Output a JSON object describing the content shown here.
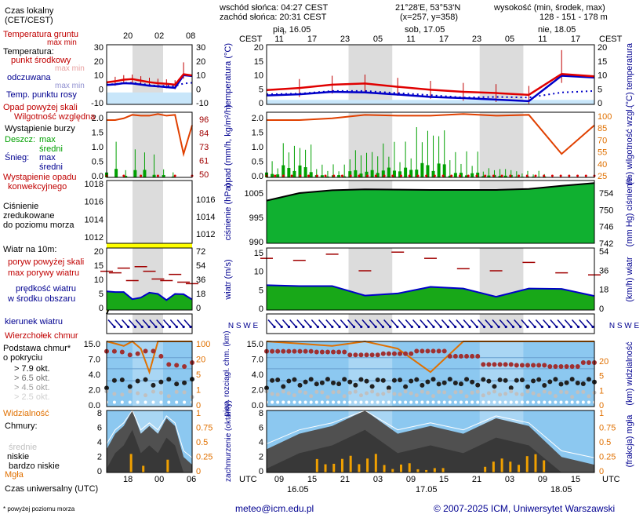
{
  "header": {
    "sunrise": "wschód słońca: 04:27 CEST",
    "sunset": "zachód słońca: 20:31 CEST",
    "coords": "21°28'E, 53°53'N",
    "grid": "(x=257, y=358)",
    "altitude_title": "wysokość (min, środek, max)",
    "altitude_values": "128 - 151 - 178 m"
  },
  "legend": {
    "local_time_1": "Czas lokalny",
    "local_time_2": "(CET/CEST)",
    "local_hours": [
      "20",
      "02",
      "08"
    ],
    "soil_temp": "Temperatura gruntu",
    "max_min_1": "max min",
    "temperature": "Temperatura:",
    "mid_point": "punkt środkowy",
    "max_min_2": "max min",
    "perceived": "odczuwana",
    "max_min_3": "max min",
    "dew_point": "Temp. punktu rosy",
    "precip_above": "Opad powyżej skali",
    "rel_humidity": "Wilgotność względna",
    "storm": "Wystąpienie burzy",
    "rain": "Deszcz:",
    "rain_max": "max",
    "rain_mean": "średni",
    "snow": "Śnieg:",
    "snow_max": "max",
    "snow_mean": "średni",
    "conv_precip_1": "Wystąpienie opadu",
    "conv_precip_2": "konwekcyjnego",
    "pressure_1": "Ciśnienie",
    "pressure_2": "zredukowane",
    "pressure_3": "do poziomu morza",
    "wind_at": "Wiatr na 10m:",
    "gust_above": "poryw powyżej skali",
    "max_gust": "max porywy wiatru",
    "wind_speed_1": "prędkość wiatru",
    "wind_speed_2": "w środku obszaru",
    "wind_dir": "kierunek wiatru",
    "cloud_top": "Wierzchołek chmur",
    "cloud_base_1": "Podstawa chmur*",
    "cloud_base_2": "o pokryciu",
    "okt": [
      "> 7.9 okt.",
      "> 6.5 okt.",
      "> 4.5 okt.",
      "> 2.5 okt.",
      "> 0.1 okt."
    ],
    "visibility": "Widzialność",
    "clouds": "Chmury:",
    "high": "wysokie",
    "middle": "średnie",
    "low": "niskie",
    "very_low": "bardzo niskie",
    "fog": "Mgła",
    "utc_label": "Czas uniwersalny (UTC)",
    "utc_hours": [
      "18",
      "00",
      "06"
    ],
    "footnote": "* powyżej poziomu morza"
  },
  "mini_axes": {
    "temp_left": [
      "30",
      "20",
      "10",
      "0",
      "-10"
    ],
    "temp_right": [
      "30",
      "20",
      "10",
      "0",
      "-10"
    ],
    "precip_left": [
      "2.0",
      "1.5",
      "1.0",
      "0.5",
      "0.0"
    ],
    "precip_right": [
      "96",
      "84",
      "73",
      "61",
      "50"
    ],
    "press_left": [
      "1018",
      "1016",
      "1014",
      "1012"
    ],
    "press_right": [
      "1016",
      "1014",
      "1012"
    ],
    "wind_left": [
      "20",
      "15",
      "10",
      "5",
      "0"
    ],
    "wind_right": [
      "72",
      "54",
      "36",
      "18",
      "0"
    ],
    "cloud_left": [
      "15.0",
      "7.0",
      "4.0",
      "2.0",
      "0.0"
    ],
    "cloud_right": [
      "100",
      "20",
      "5",
      "1",
      "0"
    ],
    "clouds_left": [
      "8",
      "6",
      "4",
      "2",
      "0"
    ],
    "clouds_right": [
      "1",
      "0.75",
      "0.5",
      "0.25",
      "0"
    ]
  },
  "main": {
    "days": [
      "pią, 16.05",
      "sob, 17.05",
      "nie, 18.05"
    ],
    "cest": "CEST",
    "cest_hours": [
      "11",
      "17",
      "23",
      "05",
      "11",
      "17",
      "23",
      "05",
      "11",
      "17"
    ],
    "utc": "UTC",
    "utc_hours": [
      "09",
      "15",
      "21",
      "03",
      "09",
      "15",
      "21",
      "03",
      "09",
      "15"
    ],
    "bottom_dates": [
      "16.05",
      "17.05",
      "18.05"
    ],
    "labels": {
      "temp_left": "temperatura (°C)",
      "temp_right": "(°C) temperatura",
      "precip_left": "opad (mm/h, kg/m²/h)",
      "precip_right": "(%) wilgotność wzgl.",
      "press_left": "ciśnienie (hPa)",
      "press_right": "(mm Hg) ciśnienie",
      "wind_left": "wiatr (m/s)",
      "wind_right": "(km/h) wiatr",
      "cloud_left": "pion. rozciągł. chm. (km)",
      "cloud_right": "(km) widzialność",
      "clouds_left": "zachmurzenie (oktanty)",
      "clouds_right": "(frakcja) mgła",
      "compass": "N S W E"
    },
    "axes": {
      "temp": [
        "20",
        "15",
        "10",
        "5",
        "0"
      ],
      "precip_left": [
        "2.0",
        "1.5",
        "1.0",
        "0.5",
        "0.0"
      ],
      "precip_right": [
        "100",
        "85",
        "70",
        "55",
        "40",
        "25"
      ],
      "press_left": [
        "1005",
        "995",
        "990"
      ],
      "press_right": [
        "754",
        "750",
        "746",
        "742"
      ],
      "wind_left": [
        "15",
        "10",
        "5",
        "0"
      ],
      "wind_right": [
        "54",
        "36",
        "18",
        "0"
      ],
      "cloud_left": [
        "15.0",
        "7.0",
        "4.0",
        "2.0",
        "0.0"
      ],
      "cloud_right": [
        "20",
        "5",
        "1",
        "0"
      ],
      "clouds_left": [
        "8",
        "6",
        "4",
        "2",
        "0"
      ],
      "clouds_right": [
        "1",
        "0.75",
        "0.5",
        "0.25",
        "0"
      ]
    }
  },
  "footer": {
    "email": "meteo@icm.edu.pl",
    "copyright": "© 2007-2025 ICM, Uniwersytet Warszawski"
  },
  "colors": {
    "sky": "#8cc8f0",
    "sky_light": "#c8e6fa",
    "night": "#dcdcdc",
    "red": "#e00000",
    "dark_red": "#a00000",
    "blue": "#0000c8",
    "green": "#00a000",
    "dark_green": "#006400",
    "yellow": "#ffff00",
    "orange": "#e07000",
    "navy": "#000090",
    "cloud_dark": "#383838"
  },
  "chart_data": [
    {
      "type": "line",
      "name": "temperature",
      "xlabel": "UTC",
      "ylabel": "temperatura (°C)",
      "ylim": [
        0,
        20
      ],
      "x_hours_from_16_05_06utc": [
        0,
        6,
        12,
        18,
        24,
        30,
        36,
        42,
        48,
        54,
        60
      ],
      "series": [
        {
          "name": "mid",
          "values": [
            4.8,
            5.5,
            6.6,
            7.0,
            5.9,
            4.9,
            4.2,
            3.8,
            3.2,
            10.2,
            9.4
          ]
        },
        {
          "name": "perceived",
          "values": [
            3.0,
            3.4,
            4.2,
            4.0,
            3.3,
            2.5,
            2.1,
            1.6,
            1.1,
            9.6,
            9.0
          ]
        },
        {
          "name": "dew point",
          "values": [
            3.4,
            3.6,
            4.5,
            4.5,
            3.8,
            3.1,
            2.3,
            2.5,
            2.3,
            4.0,
            4.5
          ]
        }
      ]
    },
    {
      "type": "bar",
      "name": "precipitation",
      "ylabel": "opad (mm/h, kg/m²/h)",
      "ylim": [
        0,
        2.0
      ],
      "series": [
        {
          "name": "rain max",
          "values": [
            0.5,
            1.1,
            0.4,
            0.9,
            1.1,
            1.6,
            0.8,
            0.3,
            0.2,
            0.0,
            0.0
          ]
        },
        {
          "name": "rain mean",
          "values": [
            0.1,
            0.25,
            0.05,
            0.15,
            0.2,
            0.3,
            0.1,
            0.05,
            0.02,
            0.0,
            0.0
          ]
        }
      ],
      "humidity_pct": [
        91,
        91,
        93,
        97,
        96,
        96,
        98,
        96,
        97,
        52,
        85
      ]
    },
    {
      "type": "area",
      "name": "pressure",
      "ylabel": "ciśnienie (hPa)",
      "ylim": [
        990,
        1010
      ],
      "x_hours_from_16_05_06utc": [
        0,
        6,
        12,
        18,
        24,
        30,
        36,
        42,
        48,
        54,
        60
      ],
      "values": [
        1003.6,
        1006.0,
        1006.9,
        1007.2,
        1007.1,
        1007.0,
        1007.0,
        1007.0,
        1007.3,
        1008.3,
        1009.2
      ]
    },
    {
      "type": "area",
      "name": "wind",
      "ylabel": "wiatr (m/s)",
      "ylim": [
        0,
        15
      ],
      "series": [
        {
          "name": "wind speed",
          "values": [
            6.0,
            5.8,
            5.8,
            3.5,
            4.0,
            5.6,
            5.2,
            3.2,
            5.2,
            5.1,
            3.4
          ]
        },
        {
          "name": "max gust",
          "values": [
            12.5,
            12.0,
            13.5,
            9.5,
            14.0,
            12.5,
            10.0,
            9.5,
            11.5,
            9.0,
            8.5
          ]
        }
      ]
    },
    {
      "type": "scatter",
      "name": "cloud base and visibility",
      "ylabel": "pion. rozciągł. chm. (km)",
      "series": [
        {
          "name": "cloud top",
          "values": [
            9.5,
            9.5,
            9.2,
            8.0,
            8.5,
            9.6,
            7.5,
            5.0,
            4.8,
            4.5,
            5.5
          ]
        },
        {
          "name": "visibility",
          "values": [
            20,
            18,
            16,
            20,
            14,
            4,
            20,
            20,
            20,
            20,
            20
          ]
        }
      ]
    },
    {
      "type": "area",
      "name": "cloud cover",
      "ylabel": "zachmurzenie (oktanty)",
      "ylim": [
        0,
        8
      ],
      "series": [
        {
          "name": "low",
          "values": [
            3,
            5,
            6,
            8,
            5,
            6,
            5,
            7,
            6,
            2,
            1
          ]
        },
        {
          "name": "fog",
          "values": [
            0,
            0,
            0.15,
            0.2,
            0.1,
            0.05,
            0,
            0.15,
            0.2,
            0,
            0
          ]
        }
      ]
    }
  ]
}
